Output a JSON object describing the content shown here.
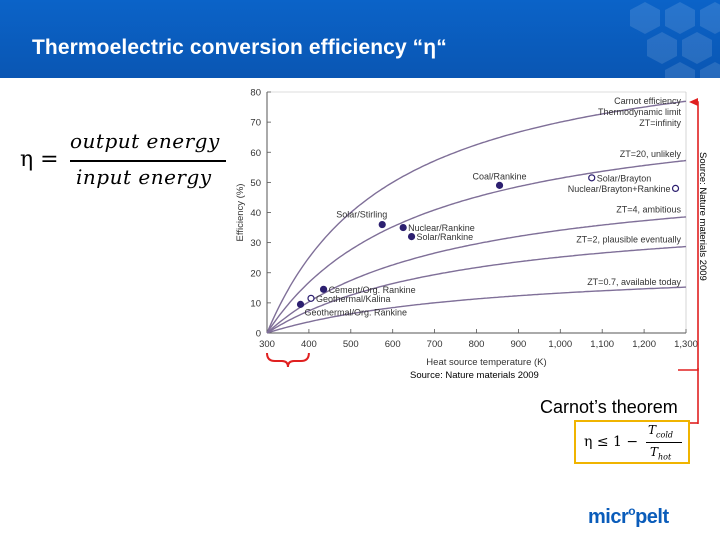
{
  "slide": {
    "title": "Thermoelectric conversion efficiency “η“",
    "formula": {
      "lhs": "η =",
      "numerator": "output energy",
      "denominator": "input energy"
    },
    "source_vertical": "Source: Nature materials 2009",
    "source_bottom": "Source: Nature materials 2009",
    "carnot_title": "Carnot’s theorem",
    "carnot_formula": {
      "lhs": "η ≤ 1 −",
      "numerator": "T",
      "numerator_sub": "cold",
      "denominator": "T",
      "denominator_sub": "hot"
    },
    "logo": {
      "text": "micr",
      "degree": "o",
      "text2": "pelt"
    },
    "colors": {
      "banner": "#0a5cba",
      "curve": "#7f6f98",
      "point": "#2d2070",
      "annotation": "#e02020",
      "carnot_box": "#f0b400"
    }
  },
  "chart_data": {
    "type": "scatter",
    "xlabel": "Heat source temperature (K)",
    "ylabel": "Efficiency (%)",
    "xlim": [
      300,
      1300
    ],
    "ylim": [
      0,
      80
    ],
    "xticks": [
      300,
      400,
      500,
      600,
      700,
      800,
      900,
      "1,000",
      "1,100",
      "1,200",
      "1,300"
    ],
    "yticks": [
      0,
      10,
      20,
      30,
      40,
      50,
      60,
      70,
      80
    ],
    "grid": false,
    "curves": [
      {
        "kind": "carnot",
        "zt": null,
        "labels": [
          "Carnot efficiency",
          "Thermodynamic limit",
          "ZT=infinity"
        ],
        "label_anchor": [
          1300,
          76
        ]
      },
      {
        "kind": "zt",
        "zt": 20,
        "labels": [
          "ZT=20, unlikely"
        ],
        "label_anchor": [
          1300,
          58.5
        ]
      },
      {
        "kind": "zt",
        "zt": 4,
        "labels": [
          "ZT=4, ambitious"
        ],
        "label_anchor": [
          1300,
          40
        ]
      },
      {
        "kind": "zt",
        "zt": 2,
        "labels": [
          "ZT=2, plausible eventually"
        ],
        "label_anchor": [
          1300,
          30
        ]
      },
      {
        "kind": "zt",
        "zt": 0.7,
        "labels": [
          "ZT=0.7, available today"
        ],
        "label_anchor": [
          1300,
          16
        ]
      }
    ],
    "points": [
      {
        "label": "Coal/Rankine",
        "x": 855,
        "y": 49,
        "filled": true,
        "label_pos": "above"
      },
      {
        "label": "Solar/Brayton",
        "x": 1075,
        "y": 51.5,
        "filled": false,
        "label_pos": "right"
      },
      {
        "label": "Nuclear/Brayton+Rankine",
        "x": 1275,
        "y": 48,
        "filled": false,
        "label_pos": "left"
      },
      {
        "label": "Solar/Stirling",
        "x": 575,
        "y": 36,
        "filled": true,
        "label_pos": "above-left"
      },
      {
        "label": "Nuclear/Rankine",
        "x": 625,
        "y": 35,
        "filled": true,
        "label_pos": "right"
      },
      {
        "label": "Solar/Rankine",
        "x": 645,
        "y": 32,
        "filled": true,
        "label_pos": "right"
      },
      {
        "label": "Cement/Org. Rankine",
        "x": 435,
        "y": 14.5,
        "filled": true,
        "label_pos": "right"
      },
      {
        "label": "Geothermal/Kalina",
        "x": 405,
        "y": 11.5,
        "filled": false,
        "label_pos": "right"
      },
      {
        "label": "Geothermal/Org. Rankine",
        "x": 380,
        "y": 9.5,
        "filled": true,
        "label_pos": "below-right"
      }
    ],
    "annotations": {
      "bracket_x_range": [
        300,
        400
      ],
      "arrow_target": [
        1300,
        77
      ]
    }
  }
}
